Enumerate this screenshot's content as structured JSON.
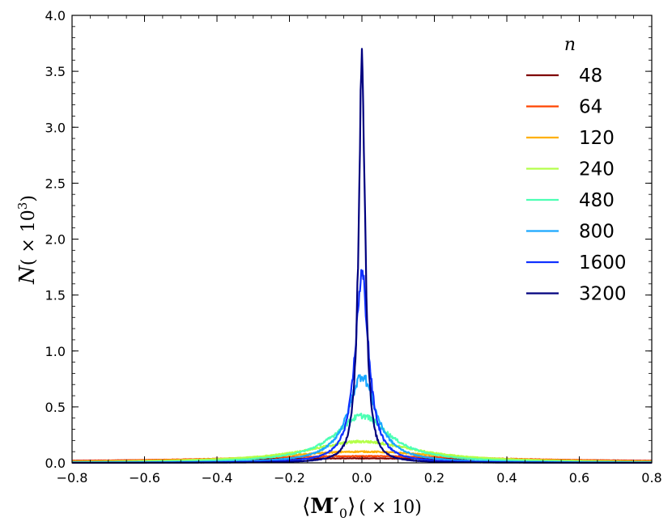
{
  "chart_data": {
    "type": "line",
    "xlabel": "⟨M′0⟩ (×10)",
    "xlabel_parts": {
      "open": "⟨",
      "main": "M′",
      "sub": "0",
      "close": "⟩",
      "scale": "( × 10)"
    },
    "ylabel": "N( × 10^3)",
    "ylabel_parts": {
      "main": "N",
      "scale": "( × 10",
      "sup": "3",
      "close": ")"
    },
    "xlim": [
      -0.8,
      0.8
    ],
    "ylim": [
      0.0,
      4.0
    ],
    "xticks": [
      "-0.8",
      "-0.6",
      "-0.4",
      "-0.2",
      "0.0",
      "0.2",
      "0.4",
      "0.6",
      "0.8"
    ],
    "xtick_values": [
      -0.8,
      -0.6,
      -0.4,
      -0.2,
      0.0,
      0.2,
      0.4,
      0.6,
      0.8
    ],
    "yticks": [
      "0.0",
      "0.5",
      "1.0",
      "1.5",
      "2.0",
      "2.5",
      "3.0",
      "3.5",
      "4.0"
    ],
    "ytick_values": [
      0.0,
      0.5,
      1.0,
      1.5,
      2.0,
      2.5,
      3.0,
      3.5,
      4.0
    ],
    "grid": false,
    "legend": {
      "title": "n",
      "placement": "top-right"
    },
    "series": [
      {
        "name": "48",
        "color": "#7f0000",
        "peak": 0.04,
        "width": 0.9
      },
      {
        "name": "64",
        "color": "#ff4500",
        "peak": 0.06,
        "width": 0.6
      },
      {
        "name": "120",
        "color": "#ffb000",
        "peak": 0.1,
        "width": 0.35
      },
      {
        "name": "240",
        "color": "#b4ff4a",
        "peak": 0.19,
        "width": 0.22
      },
      {
        "name": "480",
        "color": "#4dffb4",
        "peak": 0.42,
        "width": 0.11
      },
      {
        "name": "800",
        "color": "#1aa8ff",
        "peak": 0.78,
        "width": 0.055
      },
      {
        "name": "1600",
        "color": "#1030ff",
        "peak": 1.68,
        "width": 0.027
      },
      {
        "name": "3200",
        "color": "#00007f",
        "peak": 3.7,
        "width": 0.0125
      }
    ]
  }
}
